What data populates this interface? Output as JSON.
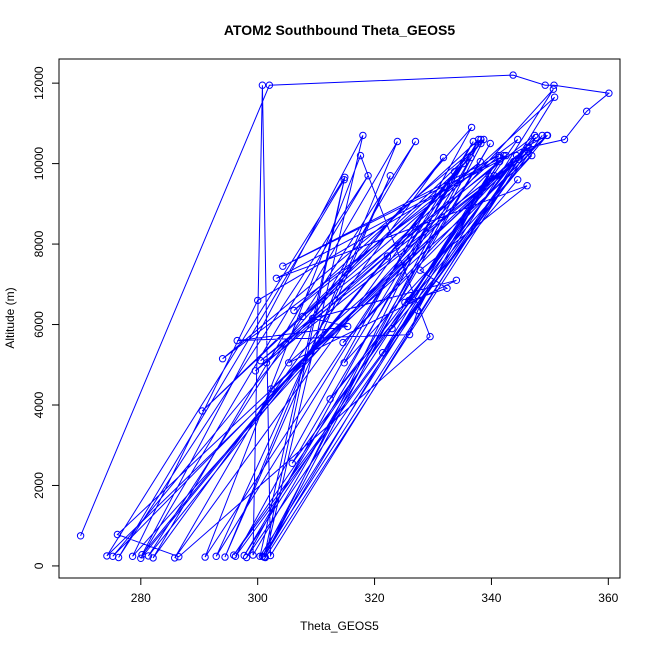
{
  "chart_data": {
    "type": "scatter",
    "title": "ATOM2 Southbound Theta_GEOS5",
    "xlabel": "Theta_GEOS5",
    "ylabel": "Altitude (m)",
    "xlim": [
      266,
      362
    ],
    "ylim": [
      -300,
      12600
    ],
    "xticks": [
      280,
      300,
      320,
      340,
      360
    ],
    "yticks": [
      0,
      2000,
      4000,
      6000,
      8000,
      10000,
      12000
    ],
    "grid": false,
    "legend": "none",
    "series": [
      {
        "color": "#0000ff",
        "marker": "open-circle",
        "connected": true,
        "points": [
          [
            269.7,
            750
          ],
          [
            302.0,
            11950
          ],
          [
            343.7,
            12200
          ],
          [
            349.2,
            11950
          ],
          [
            350.7,
            11950
          ],
          [
            360.1,
            11750
          ],
          [
            356.3,
            11300
          ],
          [
            352.5,
            10600
          ],
          [
            346.4,
            10400
          ],
          [
            276.0,
            780
          ],
          [
            286.5,
            230
          ],
          [
            329.5,
            5700
          ],
          [
            317.6,
            10200
          ],
          [
            291.0,
            220
          ],
          [
            335.2,
            10000
          ],
          [
            280.2,
            280
          ],
          [
            318.0,
            10700
          ],
          [
            301.3,
            210
          ],
          [
            347.6,
            10650
          ],
          [
            274.2,
            250
          ],
          [
            314.9,
            9660
          ],
          [
            301.1,
            220
          ],
          [
            341.4,
            10050
          ],
          [
            275.2,
            240
          ],
          [
            331.8,
            10150
          ],
          [
            282.1,
            200
          ],
          [
            323.9,
            10550
          ],
          [
            294.4,
            220
          ],
          [
            322.7,
            9700
          ],
          [
            292.9,
            240
          ],
          [
            336.9,
            10550
          ],
          [
            298.1,
            210
          ],
          [
            344.7,
            10100
          ],
          [
            300.8,
            240
          ],
          [
            338.2,
            10600
          ],
          [
            281.3,
            250
          ],
          [
            327.0,
            10550
          ],
          [
            285.8,
            200
          ],
          [
            333.7,
            9800
          ],
          [
            301.2,
            230
          ],
          [
            338.7,
            10600
          ],
          [
            280.0,
            190
          ],
          [
            318.9,
            9700
          ],
          [
            276.2,
            210
          ],
          [
            314.8,
            9600
          ],
          [
            300.4,
            240
          ],
          [
            350.6,
            11850
          ],
          [
            278.6,
            240
          ],
          [
            300.0,
            6600
          ],
          [
            342.1,
            10200
          ],
          [
            297.7,
            260
          ],
          [
            339.8,
            10500
          ],
          [
            299.2,
            270
          ],
          [
            300.8,
            11950
          ],
          [
            302.2,
            260
          ],
          [
            350.8,
            11650
          ],
          [
            299.6,
            4850
          ],
          [
            346.3,
            10300
          ],
          [
            300.5,
            5100
          ],
          [
            342.5,
            10200
          ],
          [
            304.3,
            7450
          ],
          [
            341.3,
            10200
          ],
          [
            301.5,
            5050
          ],
          [
            336.6,
            10900
          ],
          [
            296.2,
            240
          ],
          [
            348.7,
            10700
          ],
          [
            295.9,
            270
          ],
          [
            344.5,
            10600
          ],
          [
            294.0,
            5150
          ],
          [
            338.2,
            10500
          ],
          [
            290.5,
            3850
          ],
          [
            336.5,
            10150
          ],
          [
            305.9,
            2550
          ],
          [
            344.3,
            10200
          ],
          [
            302.3,
            4400
          ],
          [
            346.9,
            10200
          ],
          [
            314.8,
            5050
          ],
          [
            337.8,
            10600
          ],
          [
            306.2,
            6350
          ],
          [
            338.1,
            10050
          ],
          [
            307.7,
            6200
          ],
          [
            347.4,
            10700
          ],
          [
            312.4,
            4150
          ],
          [
            349.5,
            10700
          ],
          [
            314.6,
            5550
          ],
          [
            346.1,
            10400
          ],
          [
            321.4,
            5300
          ],
          [
            341.3,
            10150
          ],
          [
            325.9,
            6600
          ],
          [
            340.5,
            9700
          ],
          [
            322.2,
            7700
          ],
          [
            343.8,
            10050
          ],
          [
            325.2,
            6550
          ],
          [
            332.4,
            6900
          ],
          [
            327.8,
            7350
          ],
          [
            346.1,
            9450
          ],
          [
            303.2,
            7150
          ],
          [
            349.6,
            10700
          ],
          [
            305.3,
            5050
          ],
          [
            334.0,
            7100
          ],
          [
            309.4,
            6150
          ],
          [
            315.4,
            5950
          ],
          [
            296.5,
            5600
          ],
          [
            326.0,
            5750
          ],
          [
            327.4,
            6350
          ],
          [
            339.6,
            9700
          ],
          [
            323.0,
            5900
          ],
          [
            344.5,
            9600
          ]
        ]
      }
    ]
  }
}
